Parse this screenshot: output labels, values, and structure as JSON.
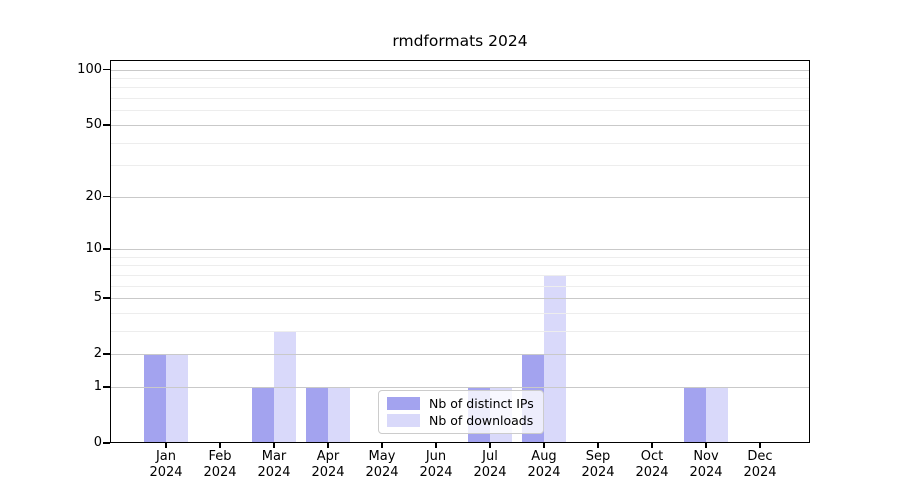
{
  "title": "rmdformats 2024",
  "chart_data": {
    "type": "bar",
    "title": "rmdformats 2024",
    "categories": [
      "Jan",
      "Feb",
      "Mar",
      "Apr",
      "May",
      "Jun",
      "Jul",
      "Aug",
      "Sep",
      "Oct",
      "Nov",
      "Dec"
    ],
    "x_tick_year": "2024",
    "series": [
      {
        "name": "Nb of distinct IPs",
        "key": "distinct-ips",
        "color": "#a3a3ef",
        "values": [
          2,
          0,
          1,
          1,
          0,
          0,
          1,
          2,
          0,
          0,
          1,
          0
        ]
      },
      {
        "name": "Nb of downloads",
        "key": "downloads",
        "color": "#d9d9fa",
        "values": [
          2,
          0,
          3,
          1,
          0,
          0,
          1,
          7,
          0,
          0,
          1,
          0
        ]
      }
    ],
    "yscale": "log1p",
    "ylim": [
      0,
      113
    ],
    "yticks": [
      0,
      1,
      2,
      5,
      10,
      20,
      50,
      100
    ],
    "yminorticks": [
      3,
      4,
      6,
      7,
      8,
      9,
      30,
      40,
      60,
      70,
      80,
      90
    ],
    "grid": true,
    "legend_position": "lower center",
    "colors": {
      "axis": "#000000",
      "grid_major": "#c9c9c9",
      "grid_minor": "#ededed",
      "legend_border": "#cccccc"
    }
  }
}
